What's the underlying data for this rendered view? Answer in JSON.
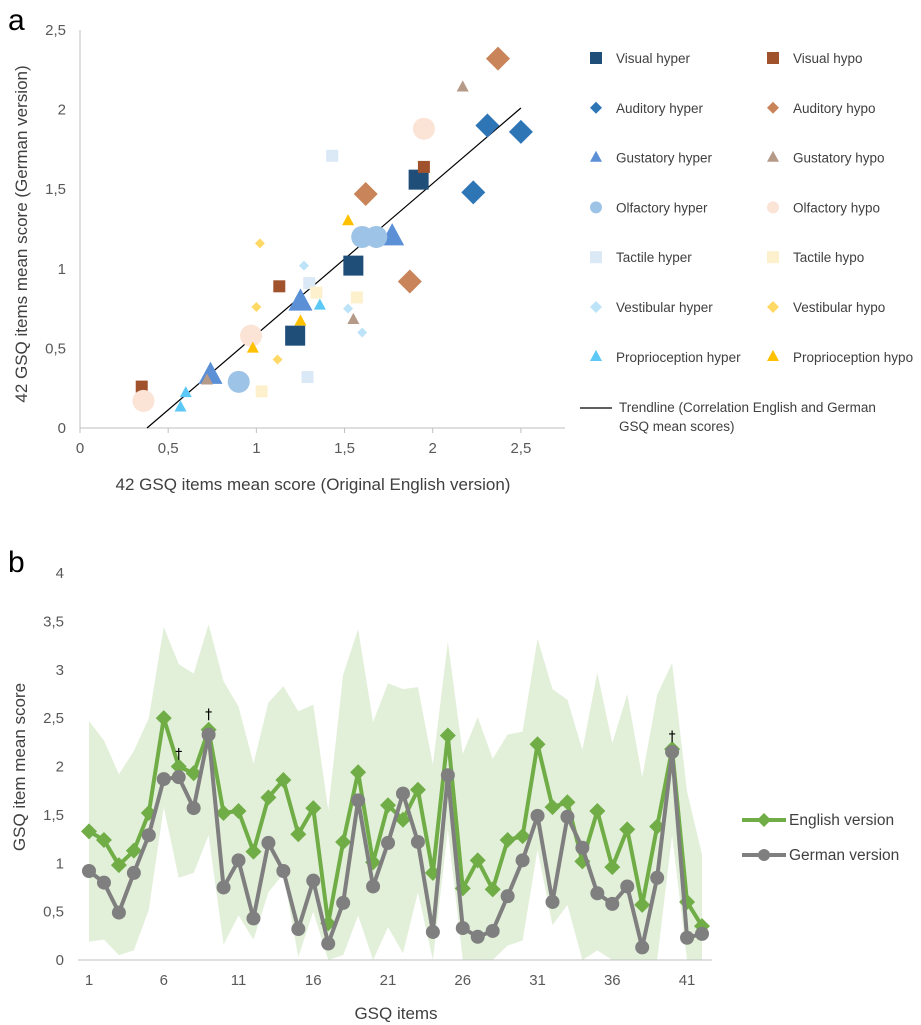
{
  "figure": {
    "panel_a_label": "a",
    "panel_b_label": "b"
  },
  "chart_data": [
    {
      "type": "scatter",
      "panel": "a",
      "xlabel": "42 GSQ items mean score (Original English version)",
      "ylabel": "42 GSQ items mean score (German version)",
      "xlim": [
        0,
        2.75
      ],
      "ylim": [
        0,
        2.5
      ],
      "xticks": [
        0,
        0.5,
        1,
        1.5,
        2,
        2.5
      ],
      "xtick_labels": [
        "0",
        "0,5",
        "1",
        "1,5",
        "2",
        "2,5"
      ],
      "yticks": [
        0,
        0.5,
        1,
        1.5,
        2,
        2.5
      ],
      "ytick_labels": [
        "0",
        "0,5",
        "1",
        "1,5",
        "2",
        "2,5"
      ],
      "grid": false,
      "legend_position": "right",
      "series": [
        {
          "name": "Visual hyper",
          "color": "#1f4e79",
          "marker": "square",
          "points": [
            [
              1.22,
              0.58
            ],
            [
              1.55,
              1.02
            ],
            [
              1.92,
              1.56
            ]
          ],
          "sizes": [
            10,
            10,
            10
          ]
        },
        {
          "name": "Visual hypo",
          "color": "#a0522d",
          "marker": "square",
          "points": [
            [
              0.35,
              0.26
            ],
            [
              1.13,
              0.89
            ],
            [
              1.95,
              1.64
            ]
          ],
          "sizes": [
            6,
            6,
            6
          ]
        },
        {
          "name": "Auditory hyper",
          "color": "#2e75b6",
          "marker": "diamond",
          "points": [
            [
              2.23,
              1.48
            ],
            [
              2.31,
              1.9
            ],
            [
              2.5,
              1.86
            ]
          ],
          "sizes": [
            12,
            12,
            12
          ]
        },
        {
          "name": "Auditory hypo",
          "color": "#c9845a",
          "marker": "diamond",
          "points": [
            [
              1.62,
              1.47
            ],
            [
              1.87,
              0.92
            ],
            [
              2.37,
              2.32
            ]
          ],
          "sizes": [
            12,
            12,
            12
          ]
        },
        {
          "name": "Gustatory hyper",
          "color": "#5b8fd6",
          "marker": "triangle",
          "points": [
            [
              0.74,
              0.33
            ],
            [
              1.25,
              0.79
            ],
            [
              1.77,
              1.2
            ]
          ],
          "sizes": [
            12,
            12,
            12
          ]
        },
        {
          "name": "Gustatory hypo",
          "color": "#b59a88",
          "marker": "triangle",
          "points": [
            [
              0.72,
              0.3
            ],
            [
              1.55,
              0.68
            ],
            [
              2.17,
              2.14
            ]
          ],
          "sizes": [
            6,
            6,
            6
          ]
        },
        {
          "name": "Olfactory hyper",
          "color": "#9dc3e6",
          "marker": "circle",
          "points": [
            [
              0.9,
              0.29
            ],
            [
              1.6,
              1.2
            ],
            [
              1.68,
              1.2
            ]
          ],
          "sizes": [
            11,
            11,
            11
          ]
        },
        {
          "name": "Olfactory hypo",
          "color": "#fbe3d6",
          "marker": "circle",
          "points": [
            [
              0.36,
              0.17
            ],
            [
              0.97,
              0.58
            ],
            [
              1.95,
              1.88
            ]
          ],
          "sizes": [
            11,
            11,
            11
          ]
        },
        {
          "name": "Tactile hyper",
          "color": "#dbe8f6",
          "marker": "square",
          "points": [
            [
              1.43,
              1.71
            ],
            [
              1.3,
              0.91
            ],
            [
              1.29,
              0.32
            ]
          ],
          "sizes": [
            6,
            6,
            6
          ]
        },
        {
          "name": "Tactile hypo",
          "color": "#fdf0cc",
          "marker": "square",
          "points": [
            [
              1.03,
              0.23
            ],
            [
              1.34,
              0.85
            ],
            [
              1.57,
              0.82
            ]
          ],
          "sizes": [
            6,
            6,
            6
          ]
        },
        {
          "name": "Vestibular hyper",
          "color": "#bde3f8",
          "marker": "diamond",
          "points": [
            [
              1.27,
              1.02
            ],
            [
              1.52,
              0.75
            ],
            [
              1.6,
              0.6
            ]
          ],
          "sizes": [
            5,
            5,
            5
          ]
        },
        {
          "name": "Vestibular hypo",
          "color": "#ffd966",
          "marker": "diamond",
          "points": [
            [
              1.02,
              1.16
            ],
            [
              1.0,
              0.76
            ],
            [
              1.12,
              0.43
            ]
          ],
          "sizes": [
            5,
            5,
            5
          ]
        },
        {
          "name": "Proprioception hyper",
          "color": "#5bc8f5",
          "marker": "triangle",
          "points": [
            [
              0.57,
              0.13
            ],
            [
              0.6,
              0.22
            ],
            [
              1.36,
              0.77
            ]
          ],
          "sizes": [
            6,
            6,
            6
          ]
        },
        {
          "name": "Proprioception hypo",
          "color": "#ffc000",
          "marker": "triangle",
          "points": [
            [
              0.98,
              0.5
            ],
            [
              1.25,
              0.67
            ],
            [
              1.52,
              1.3
            ]
          ],
          "sizes": [
            6,
            6,
            6
          ]
        }
      ],
      "trendline": {
        "name": "Trendline (Correlation English and German GSQ mean scores)",
        "name_lines": [
          "Trendline (Correlation English and German",
          "GSQ mean scores)"
        ],
        "from": [
          0.38,
          0
        ],
        "to": [
          2.5,
          2.01
        ],
        "color": "#000000"
      }
    },
    {
      "type": "line",
      "panel": "b",
      "xlabel": "GSQ items",
      "ylabel": "GSQ item mean score",
      "x": [
        1,
        2,
        3,
        4,
        5,
        6,
        7,
        8,
        9,
        10,
        11,
        12,
        13,
        14,
        15,
        16,
        17,
        18,
        19,
        20,
        21,
        22,
        23,
        24,
        25,
        26,
        27,
        28,
        29,
        30,
        31,
        32,
        33,
        34,
        35,
        36,
        37,
        38,
        39,
        40,
        41,
        42
      ],
      "xticks": [
        1,
        6,
        11,
        16,
        21,
        26,
        31,
        36,
        41
      ],
      "xtick_labels": [
        "1",
        "6",
        "11",
        "16",
        "21",
        "26",
        "31",
        "36",
        "41"
      ],
      "ylim": [
        0,
        4
      ],
      "yticks": [
        0,
        0.5,
        1,
        1.5,
        2,
        2.5,
        3,
        3.5,
        4
      ],
      "ytick_labels": [
        "0",
        "0,5",
        "1",
        "1,5",
        "2",
        "2,5",
        "3",
        "3,5",
        "4"
      ],
      "legend_position": "right",
      "series": [
        {
          "name": "English version",
          "color": "#70ad47",
          "marker": "diamond",
          "values": [
            1.33,
            1.24,
            0.98,
            1.13,
            1.52,
            2.5,
            2.0,
            1.93,
            2.38,
            1.52,
            1.54,
            1.12,
            1.68,
            1.86,
            1.3,
            1.57,
            0.38,
            1.22,
            1.94,
            1.01,
            1.6,
            1.45,
            1.76,
            0.9,
            2.32,
            0.74,
            1.03,
            0.73,
            1.24,
            1.28,
            2.23,
            1.58,
            1.63,
            1.02,
            1.54,
            0.96,
            1.35,
            0.57,
            1.38,
            2.18,
            0.6,
            0.35
          ]
        },
        {
          "name": "German version",
          "color": "#7f7f7f",
          "marker": "circle",
          "values": [
            0.92,
            0.8,
            0.49,
            0.9,
            1.29,
            1.87,
            1.89,
            1.57,
            2.33,
            0.75,
            1.03,
            0.43,
            1.21,
            0.92,
            0.32,
            0.82,
            0.17,
            0.59,
            1.65,
            0.76,
            1.21,
            1.72,
            1.22,
            0.29,
            1.91,
            0.33,
            0.24,
            0.3,
            0.66,
            1.03,
            1.49,
            0.6,
            1.48,
            1.16,
            0.69,
            0.58,
            0.76,
            0.13,
            0.85,
            2.15,
            0.23,
            0.27
          ]
        }
      ],
      "range_band": {
        "color": "#e2efd9",
        "upper": [
          2.47,
          2.27,
          1.92,
          2.16,
          2.5,
          3.44,
          3.06,
          2.96,
          3.47,
          2.88,
          2.62,
          2.03,
          2.66,
          2.83,
          2.57,
          2.64,
          1.55,
          2.95,
          3.42,
          2.46,
          2.86,
          2.8,
          2.82,
          2.02,
          3.29,
          2.13,
          2.51,
          2.08,
          2.33,
          2.36,
          3.32,
          2.8,
          2.69,
          2.17,
          2.97,
          2.24,
          2.75,
          1.89,
          2.74,
          3.07,
          1.74,
          1.09
        ],
        "lower": [
          0.19,
          0.21,
          0.05,
          0.1,
          0.52,
          1.58,
          0.85,
          0.9,
          1.29,
          0.16,
          0.46,
          0.21,
          0.7,
          0.89,
          0.03,
          0.5,
          0.0,
          0.05,
          0.46,
          0.0,
          0.34,
          0.07,
          0.7,
          0.0,
          1.35,
          0.0,
          0.0,
          0.0,
          0.15,
          0.2,
          1.14,
          0.36,
          0.57,
          0.0,
          0.1,
          0.0,
          0.0,
          0.0,
          0.0,
          1.29,
          0.0,
          0.0
        ]
      },
      "annotations": [
        {
          "x": 7,
          "y": 2.02,
          "text": "†"
        },
        {
          "x": 9,
          "y": 2.43,
          "text": "†"
        },
        {
          "x": 40,
          "y": 2.2,
          "text": "†"
        }
      ]
    }
  ]
}
